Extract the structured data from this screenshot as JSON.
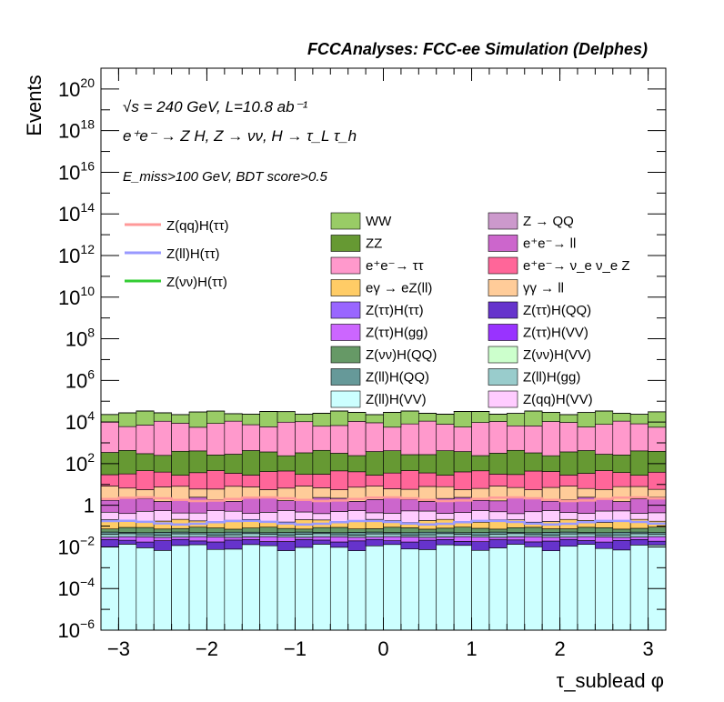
{
  "header": {
    "title": "FCCAnalyses: FCC-ee Simulation (Delphes)"
  },
  "annotations": {
    "energy_line": "√s = 240 GeV, L=10.8 ab⁻¹",
    "process_line": "e⁺e⁻ → Z H, Z → νν, H → τ_L τ_h",
    "cut_line": "E_miss>100 GeV, BDT score>0.5"
  },
  "chart_data": {
    "type": "bar",
    "stacked": true,
    "xlabel": "τ_sublead φ",
    "ylabel": "Events",
    "xlim": [
      -3.2,
      3.2
    ],
    "ylim": [
      1e-06,
      1e+21
    ],
    "yscale": "log",
    "grid": false,
    "x_ticks": [
      -3,
      -2,
      -1,
      0,
      1,
      2,
      3
    ],
    "y_ticks": [
      "10^-6",
      "10^-4",
      "10^-2",
      "1",
      "10^2",
      "10^4",
      "10^6",
      "10^8",
      "10^10",
      "10^12",
      "10^14",
      "10^16",
      "10^18",
      "10^20"
    ],
    "bins": 32,
    "background_series_bottom_to_top": [
      {
        "name": "Z(ll)H(VV)",
        "color": "#ccffff",
        "values_approx": 0.01
      },
      {
        "name": "Z(ττ)H(QQ)",
        "color": "#6633cc",
        "values_approx": 0.01
      },
      {
        "name": "Z(ττ)H(gg)",
        "color": "#cc66ff",
        "values_approx": 0.01
      },
      {
        "name": "Z(ll)H(gg)",
        "color": "#99cccc",
        "values_approx": 0.01
      },
      {
        "name": "Z(ll)H(QQ)",
        "color": "#669999",
        "values_approx": 0.01
      },
      {
        "name": "Z(νν)H(QQ)",
        "color": "#669966",
        "values_approx": 0.03
      },
      {
        "name": "eγ → eZ(ll)",
        "color": "#ffcc66",
        "values_approx": 0.1
      },
      {
        "name": "Z(qq)H(VV)",
        "color": "#ffccff",
        "values_approx": 0.3
      },
      {
        "name": "e⁺e⁻ → ll",
        "color": "#cc66cc",
        "values_approx": 1.5
      },
      {
        "name": "γγ → ll",
        "color": "#ffcc99",
        "values_approx": 5
      },
      {
        "name": "e⁺e⁻ → ν_e ν_e Z",
        "color": "#ff6699",
        "values_approx": 30
      },
      {
        "name": "ZZ",
        "color": "#669933",
        "values_approx": 300
      },
      {
        "name": "e⁺e⁻ → ττ",
        "color": "#ff99cc",
        "values_approx": 8000
      },
      {
        "name": "WW",
        "color": "#99cc66",
        "values_approx": 20000
      },
      {
        "name": "Z → QQ",
        "color": "#cc99cc",
        "values_approx": 30
      },
      {
        "name": "Z(ττ)H(ττ)",
        "color": "#9966ff",
        "values_approx": 0.3
      },
      {
        "name": "Z(ττ)H(VV)",
        "color": "#9933ff",
        "values_approx": 0.05
      },
      {
        "name": "Z(νν)H(VV)",
        "color": "#ccffcc",
        "values_approx": 0.01
      }
    ],
    "signal_series": [
      {
        "name": "Z(qq)H(ττ)",
        "color": "#ff9999",
        "values_approx": 2.0
      },
      {
        "name": "Z(ll)H(ττ)",
        "color": "#9999ff",
        "values_approx": 0.15
      },
      {
        "name": "Z(νν)H(ττ)",
        "color": "#33cc33",
        "values_approx": 0.0
      }
    ],
    "legend_left": [
      {
        "name": "Z(qq)H(ττ)",
        "color": "#ff9999",
        "style": "line"
      },
      {
        "name": "Z(ll)H(ττ)",
        "color": "#9999ff",
        "style": "line"
      },
      {
        "name": "Z(νν)H(ττ)",
        "color": "#33cc33",
        "style": "line"
      }
    ],
    "legend_mid": [
      {
        "name": "WW",
        "color": "#99cc66"
      },
      {
        "name": "ZZ",
        "color": "#669933"
      },
      {
        "name": "e⁺e⁻→ ττ",
        "color": "#ff99cc"
      },
      {
        "name": "eγ → eZ(ll)",
        "color": "#ffcc66"
      },
      {
        "name": "Z(ττ)H(ττ)",
        "color": "#9966ff"
      },
      {
        "name": "Z(ττ)H(gg)",
        "color": "#cc66ff"
      },
      {
        "name": "Z(νν)H(QQ)",
        "color": "#669966"
      },
      {
        "name": "Z(ll)H(QQ)",
        "color": "#669999"
      },
      {
        "name": "Z(ll)H(VV)",
        "color": "#ccffff"
      }
    ],
    "legend_right": [
      {
        "name": "Z → QQ",
        "color": "#cc99cc"
      },
      {
        "name": "e⁺e⁻→ ll",
        "color": "#cc66cc"
      },
      {
        "name": "e⁺e⁻→ ν_e ν_e Z",
        "color": "#ff6699"
      },
      {
        "name": "γγ → ll",
        "color": "#ffcc99"
      },
      {
        "name": "Z(ττ)H(QQ)",
        "color": "#6633cc"
      },
      {
        "name": "Z(ττ)H(VV)",
        "color": "#9933ff"
      },
      {
        "name": "Z(νν)H(VV)",
        "color": "#ccffcc"
      },
      {
        "name": "Z(ll)H(gg)",
        "color": "#99cccc"
      },
      {
        "name": "Z(qq)H(VV)",
        "color": "#ffccff"
      }
    ],
    "legend_placement": "top"
  }
}
